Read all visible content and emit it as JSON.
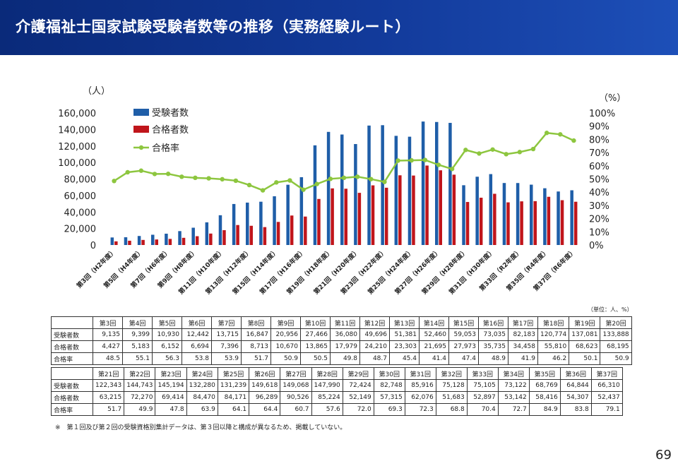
{
  "header": {
    "title": "介護福祉士国家試験受験者数等の推移（実務経験ルート）"
  },
  "chart_data": {
    "type": "bar",
    "left_axis_unit": "（人）",
    "right_axis_unit": "（%）",
    "ylim": [
      0,
      160000
    ],
    "y2lim": [
      0,
      100
    ],
    "y_ticks": [
      "0",
      "20,000",
      "40,000",
      "60,000",
      "80,000",
      "100,000",
      "120,000",
      "140,000",
      "160,000"
    ],
    "y2_ticks": [
      "0%",
      "10%",
      "20%",
      "30%",
      "40%",
      "50%",
      "60%",
      "70%",
      "80%",
      "90%",
      "100%"
    ],
    "categories": [
      "第3回",
      "第4回",
      "第5回",
      "第6回",
      "第7回",
      "第8回",
      "第9回",
      "第10回",
      "第11回",
      "第12回",
      "第13回",
      "第14回",
      "第15回",
      "第16回",
      "第17回",
      "第18回",
      "第19回",
      "第20回",
      "第21回",
      "第22回",
      "第23回",
      "第24回",
      "第25回",
      "第26回",
      "第27回",
      "第28回",
      "第29回",
      "第30回",
      "第31回",
      "第32回",
      "第33回",
      "第34回",
      "第35回",
      "第36回",
      "第37回"
    ],
    "x_tick_labels": [
      {
        "index": 0,
        "label": "第3回（H2年度）"
      },
      {
        "index": 2,
        "label": "第5回（H4年度）"
      },
      {
        "index": 4,
        "label": "第7回（H6年度）"
      },
      {
        "index": 6,
        "label": "第9回（H8年度）"
      },
      {
        "index": 8,
        "label": "第11回（H10年度）"
      },
      {
        "index": 10,
        "label": "第13回（H12年度）"
      },
      {
        "index": 12,
        "label": "第15回（H14年度）"
      },
      {
        "index": 14,
        "label": "第17回（H16年度）"
      },
      {
        "index": 16,
        "label": "第19回（H18年度）"
      },
      {
        "index": 18,
        "label": "第21回（H20年度）"
      },
      {
        "index": 20,
        "label": "第23回（H22年度）"
      },
      {
        "index": 22,
        "label": "第25回（H24年度）"
      },
      {
        "index": 24,
        "label": "第27回（H26年度）"
      },
      {
        "index": 26,
        "label": "第29回（H28年度）"
      },
      {
        "index": 28,
        "label": "第31回（H30年度）"
      },
      {
        "index": 30,
        "label": "第33回（R2年度）"
      },
      {
        "index": 32,
        "label": "第35回（R4年度）"
      },
      {
        "index": 34,
        "label": "第37回（R6年度）"
      }
    ],
    "series": [
      {
        "name": "受験者数",
        "kind": "bar",
        "axis": "left",
        "color": "#1f5ea8",
        "values": [
          9135,
          9399,
          10930,
          12442,
          13715,
          16847,
          20956,
          27466,
          36080,
          49696,
          51381,
          52460,
          59053,
          73035,
          82183,
          120774,
          137081,
          133888,
          122343,
          144743,
          145194,
          132280,
          131239,
          149618,
          149068,
          147990,
          72424,
          82748,
          85916,
          75128,
          75105,
          73122,
          68769,
          64844,
          66310
        ]
      },
      {
        "name": "合格者数",
        "kind": "bar",
        "axis": "left",
        "color": "#c0151b",
        "values": [
          4427,
          5183,
          6152,
          6694,
          7396,
          8713,
          10670,
          13865,
          17979,
          24210,
          23303,
          21695,
          27973,
          35735,
          34458,
          55810,
          68623,
          68195,
          63215,
          72270,
          69414,
          84470,
          84171,
          96289,
          90526,
          85224,
          52149,
          57315,
          62076,
          51683,
          52897,
          53142,
          58416,
          54307,
          52437
        ]
      },
      {
        "name": "合格率",
        "kind": "line",
        "axis": "right",
        "color": "#8dc63f",
        "values": [
          48.5,
          55.1,
          56.3,
          53.8,
          53.9,
          51.7,
          50.9,
          50.5,
          49.8,
          48.7,
          45.4,
          41.4,
          47.4,
          48.9,
          41.9,
          46.2,
          50.1,
          50.9,
          51.7,
          49.9,
          47.8,
          63.9,
          64.1,
          64.4,
          60.7,
          57.6,
          72.0,
          69.3,
          72.3,
          68.8,
          70.4,
          72.7,
          84.9,
          83.8,
          79.1
        ]
      }
    ],
    "legend_position": "top-left"
  },
  "table": {
    "unit_note": "（単位：人、%）",
    "row_labels": [
      "受験者数",
      "合格者数",
      "合格率"
    ],
    "part1": {
      "headers": [
        "第3回",
        "第4回",
        "第5回",
        "第6回",
        "第7回",
        "第8回",
        "第9回",
        "第10回",
        "第11回",
        "第12回",
        "第13回",
        "第14回",
        "第15回",
        "第16回",
        "第17回",
        "第18回",
        "第19回",
        "第20回"
      ],
      "rows": [
        [
          "9,135",
          "9,399",
          "10,930",
          "12,442",
          "13,715",
          "16,847",
          "20,956",
          "27,466",
          "36,080",
          "49,696",
          "51,381",
          "52,460",
          "59,053",
          "73,035",
          "82,183",
          "120,774",
          "137,081",
          "133,888"
        ],
        [
          "4,427",
          "5,183",
          "6,152",
          "6,694",
          "7,396",
          "8,713",
          "10,670",
          "13,865",
          "17,979",
          "24,210",
          "23,303",
          "21,695",
          "27,973",
          "35,735",
          "34,458",
          "55,810",
          "68,623",
          "68,195"
        ],
        [
          "48.5",
          "55.1",
          "56.3",
          "53.8",
          "53.9",
          "51.7",
          "50.9",
          "50.5",
          "49.8",
          "48.7",
          "45.4",
          "41.4",
          "47.4",
          "48.9",
          "41.9",
          "46.2",
          "50.1",
          "50.9"
        ]
      ]
    },
    "part2": {
      "headers": [
        "第21回",
        "第22回",
        "第23回",
        "第24回",
        "第25回",
        "第26回",
        "第27回",
        "第28回",
        "第29回",
        "第30回",
        "第31回",
        "第32回",
        "第33回",
        "第34回",
        "第35回",
        "第36回",
        "第37回"
      ],
      "rows": [
        [
          "122,343",
          "144,743",
          "145,194",
          "132,280",
          "131,239",
          "149,618",
          "149,068",
          "147,990",
          "72,424",
          "82,748",
          "85,916",
          "75,128",
          "75,105",
          "73,122",
          "68,769",
          "64,844",
          "66,310"
        ],
        [
          "63,215",
          "72,270",
          "69,414",
          "84,470",
          "84,171",
          "96,289",
          "90,526",
          "85,224",
          "52,149",
          "57,315",
          "62,076",
          "51,683",
          "52,897",
          "53,142",
          "58,416",
          "54,307",
          "52,437"
        ],
        [
          "51.7",
          "49.9",
          "47.8",
          "63.9",
          "64.1",
          "64.4",
          "60.7",
          "57.6",
          "72.0",
          "69.3",
          "72.3",
          "68.8",
          "70.4",
          "72.7",
          "84.9",
          "83.8",
          "79.1"
        ]
      ]
    }
  },
  "footnote": "※　第１回及び第２回の受験資格別集計データは、第３回以降と構成が異なるため、掲載していない。",
  "page_number": "69"
}
